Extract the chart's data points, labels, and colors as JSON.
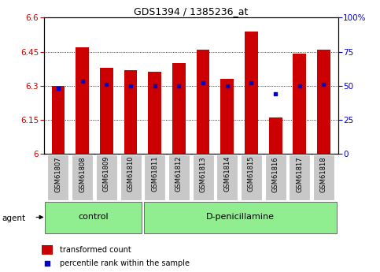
{
  "title": "GDS1394 / 1385236_at",
  "samples": [
    "GSM61807",
    "GSM61808",
    "GSM61809",
    "GSM61810",
    "GSM61811",
    "GSM61812",
    "GSM61813",
    "GSM61814",
    "GSM61815",
    "GSM61816",
    "GSM61817",
    "GSM61818"
  ],
  "transformed_count": [
    6.3,
    6.47,
    6.38,
    6.37,
    6.36,
    6.4,
    6.46,
    6.33,
    6.54,
    6.16,
    6.44,
    6.46
  ],
  "percentile_rank": [
    48,
    53,
    51,
    50,
    50,
    50,
    52,
    50,
    52,
    44,
    50,
    51
  ],
  "ylim_left": [
    6.0,
    6.6
  ],
  "ylim_right": [
    0,
    100
  ],
  "yticks_left": [
    6.0,
    6.15,
    6.3,
    6.45,
    6.6
  ],
  "yticks_right": [
    0,
    25,
    50,
    75,
    100
  ],
  "bar_color": "#cc0000",
  "dot_color": "#0000cc",
  "grid_color": "#000000",
  "background_color": "#ffffff",
  "plot_bg_color": "#ffffff",
  "control_label": "control",
  "treatment_label": "D-penicillamine",
  "agent_label": "agent",
  "legend_bar_label": "transformed count",
  "legend_dot_label": "percentile rank within the sample",
  "bar_bottom": 6.0,
  "right_axis_color": "#0000cc",
  "left_axis_color": "#cc0000",
  "n_control": 4,
  "n_treatment": 8
}
